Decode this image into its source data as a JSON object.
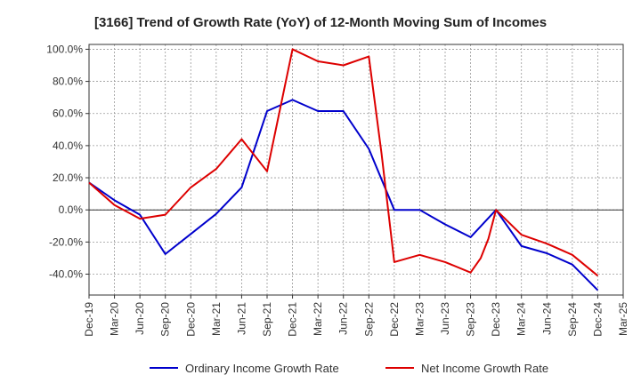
{
  "chart_data": {
    "type": "line",
    "title": "[3166]  Trend of Growth Rate (YoY) of 12-Month Moving Sum of Incomes",
    "xlabel": "",
    "ylabel": "",
    "categories": [
      "Dec-19",
      "Mar-20",
      "Jun-20",
      "Sep-20",
      "Dec-20",
      "Mar-21",
      "Jun-21",
      "Sep-21",
      "Dec-21",
      "Mar-22",
      "Jun-22",
      "Sep-22",
      "Dec-22",
      "Mar-23",
      "Jun-23",
      "Sep-23",
      "Dec-23",
      "Mar-24",
      "Jun-24",
      "Sep-24",
      "Dec-24",
      "Mar-25"
    ],
    "ylim": [
      -53,
      103
    ],
    "yticks": [
      100,
      80,
      60,
      40,
      20,
      0,
      -20,
      -40
    ],
    "ytick_labels": [
      "100.0%",
      "80.0%",
      "60.0%",
      "40.0%",
      "20.0%",
      "0.0%",
      "-20.0%",
      "-40.0%"
    ],
    "grid": true,
    "legend_position": "bottom",
    "series": [
      {
        "name": "Ordinary Income Growth Rate",
        "color": "#0000cc",
        "points": [
          [
            0,
            17
          ],
          [
            1,
            6
          ],
          [
            2,
            -3
          ],
          [
            3,
            -27.5
          ],
          [
            4,
            -15
          ],
          [
            5,
            -2.5
          ],
          [
            6,
            14
          ],
          [
            7,
            61.5
          ],
          [
            8,
            68.5
          ],
          [
            9,
            61.5
          ],
          [
            10,
            61.5
          ],
          [
            11,
            38
          ],
          [
            12,
            0
          ],
          [
            13,
            0
          ],
          [
            14,
            -9
          ],
          [
            15,
            -17
          ],
          [
            16,
            0
          ],
          [
            17,
            -22.5
          ],
          [
            18,
            -27
          ],
          [
            19,
            -34
          ],
          [
            20,
            -50
          ]
        ]
      },
      {
        "name": "Net Income Growth Rate",
        "color": "#dd0000",
        "points": [
          [
            0,
            17
          ],
          [
            1,
            3
          ],
          [
            2,
            -5.5
          ],
          [
            3,
            -3
          ],
          [
            4,
            14
          ],
          [
            5,
            25.5
          ],
          [
            6,
            44
          ],
          [
            7,
            24
          ],
          [
            8,
            100
          ],
          [
            9,
            92.5
          ],
          [
            10,
            90
          ],
          [
            11,
            95.5
          ],
          [
            11.5,
            35
          ],
          [
            12,
            -32.5
          ],
          [
            13,
            -28
          ],
          [
            14,
            -32.5
          ],
          [
            15,
            -39
          ],
          [
            15.4,
            -30
          ],
          [
            15.7,
            -18
          ],
          [
            16,
            0
          ],
          [
            17,
            -15.5
          ],
          [
            18,
            -21
          ],
          [
            19,
            -28
          ],
          [
            20,
            -41
          ]
        ]
      }
    ]
  }
}
